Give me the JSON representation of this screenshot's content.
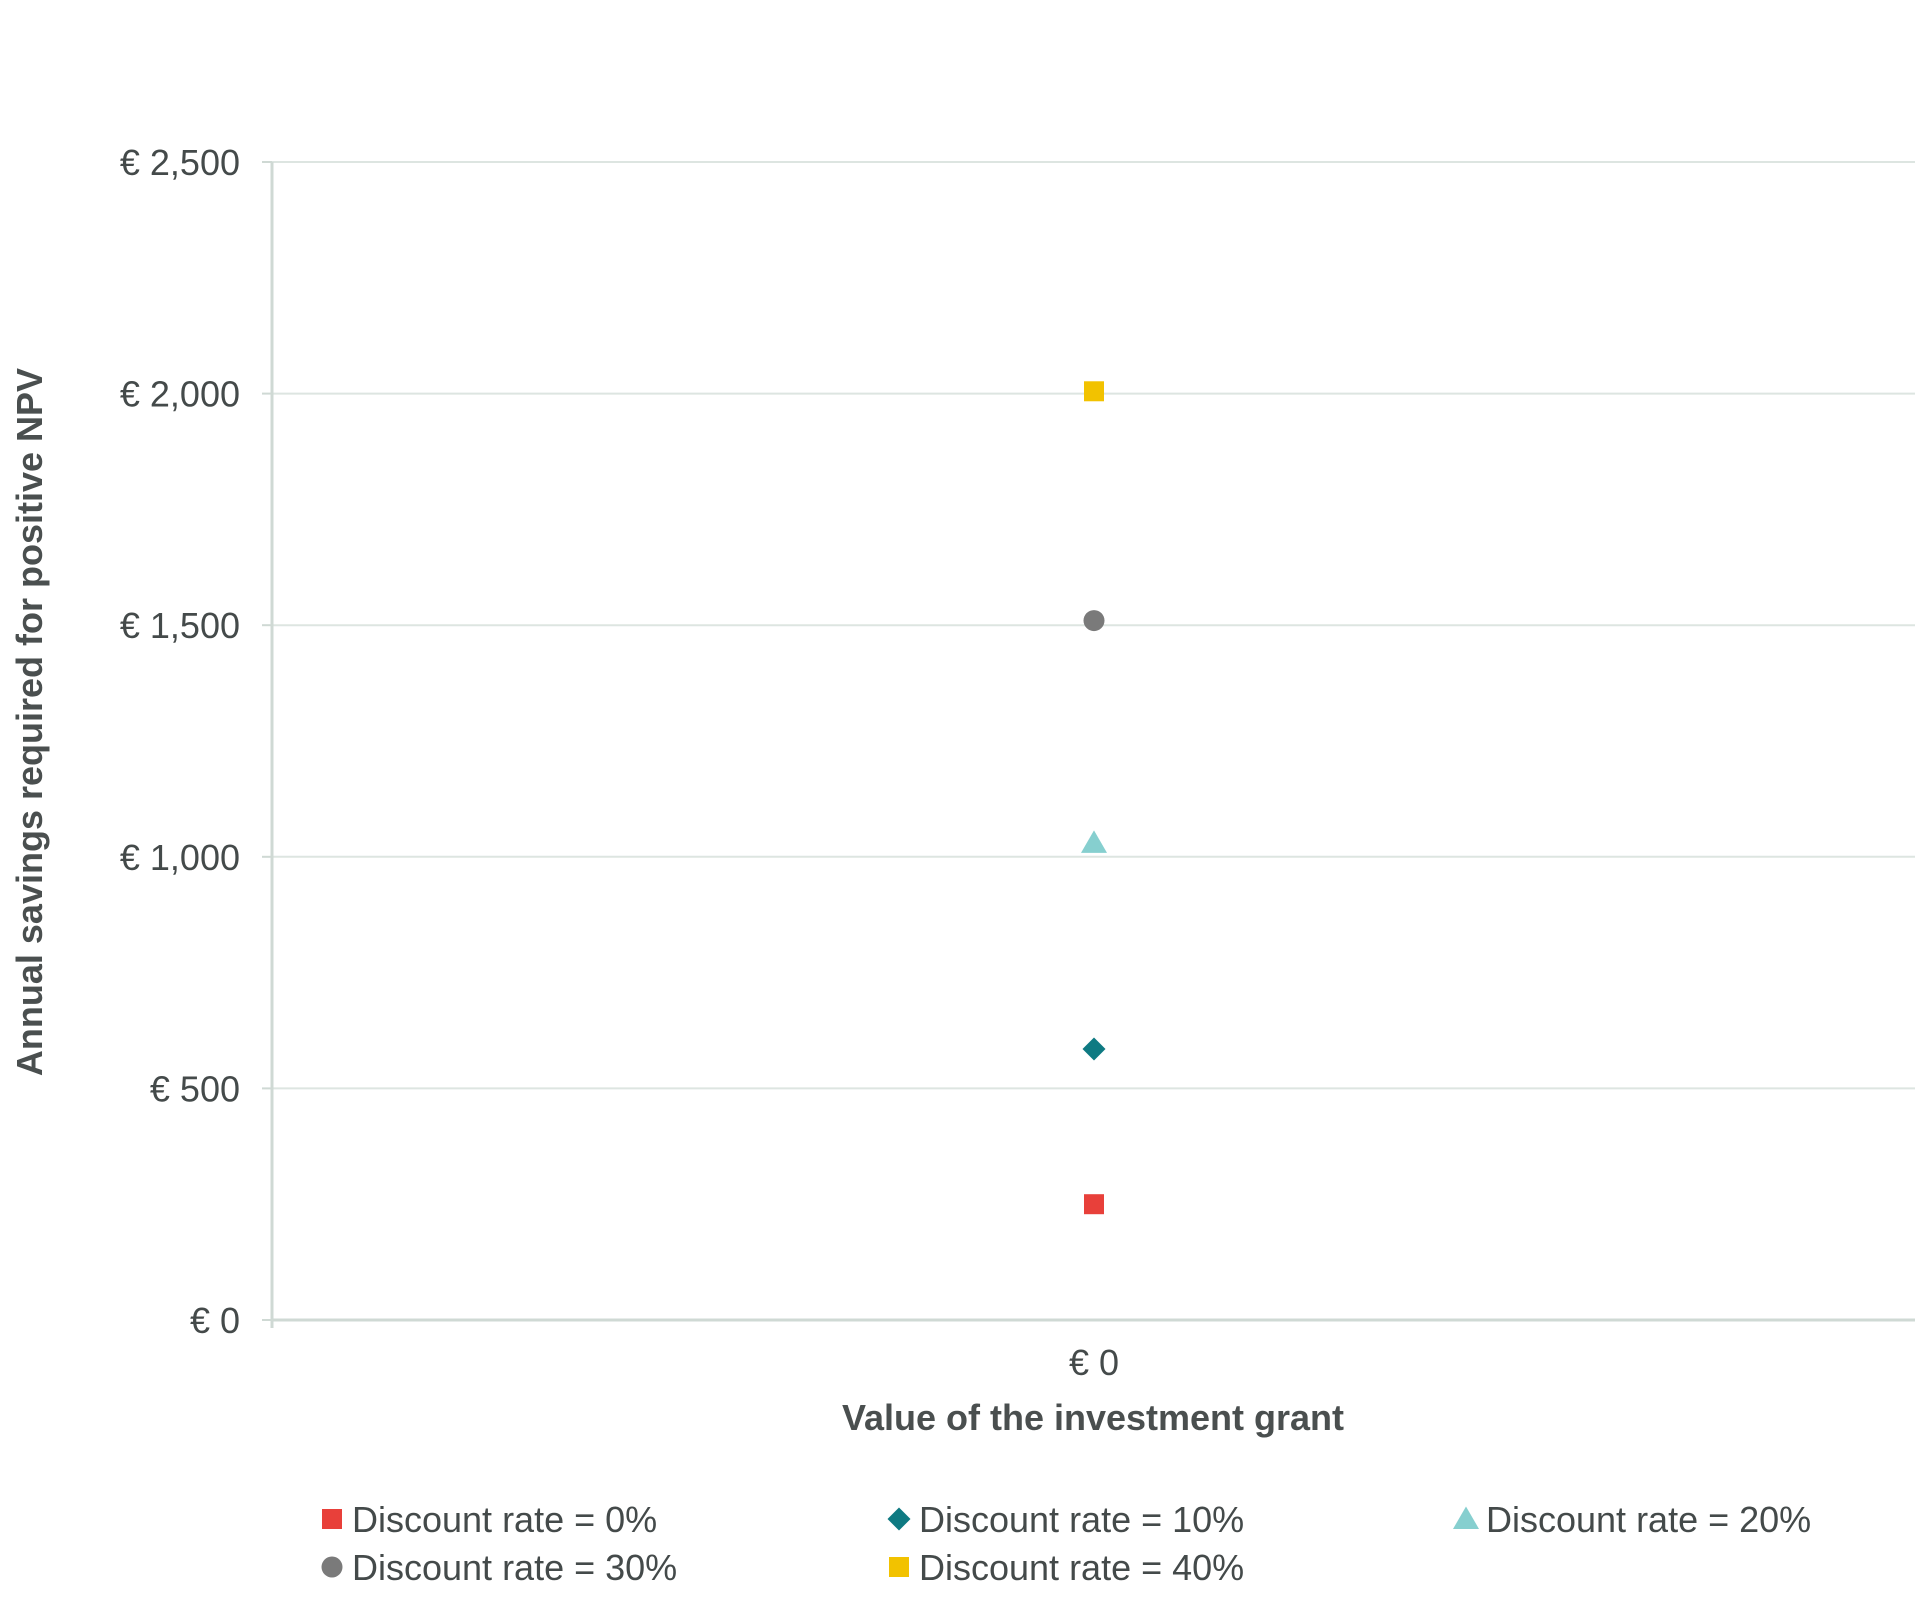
{
  "chart_data": {
    "type": "scatter",
    "xlabel": "Value of the investment grant",
    "ylabel": "Annual savings required for positive NPV",
    "x_categories": [
      "€ 0"
    ],
    "y_ticks": [
      "€ 0",
      "€ 500",
      "€ 1,000",
      "€ 1,500",
      "€ 2,000",
      "€ 2,500"
    ],
    "ylim": [
      0,
      2500
    ],
    "grid": true,
    "legend_position": "bottom",
    "series": [
      {
        "name": "Discount rate = 0%",
        "marker": "square",
        "color": "#e8403a",
        "x": 0,
        "y": 250
      },
      {
        "name": "Discount rate = 10%",
        "marker": "diamond",
        "color": "#0e7a82",
        "x": 0,
        "y": 585
      },
      {
        "name": "Discount rate = 20%",
        "marker": "triangle",
        "color": "#86cfcf",
        "x": 0,
        "y": 1030
      },
      {
        "name": "Discount rate = 30%",
        "marker": "circle",
        "color": "#7a7a7a",
        "x": 0,
        "y": 1510
      },
      {
        "name": "Discount rate = 40%",
        "marker": "square",
        "color": "#f2c200",
        "x": 0,
        "y": 2005
      }
    ]
  }
}
